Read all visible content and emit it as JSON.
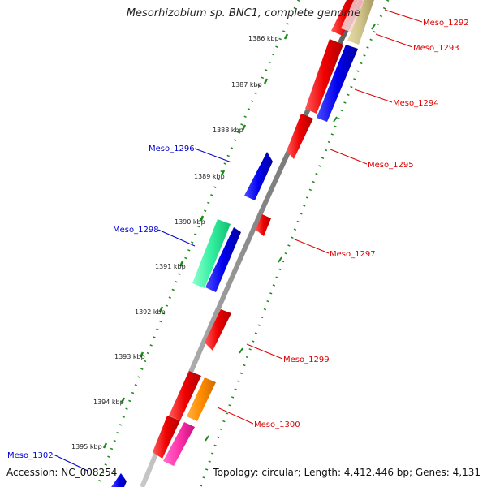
{
  "title": "Mesorhizobium sp. BNC1, complete genome",
  "footer": {
    "accession": "Accession: NC_008254",
    "topology": "Topology: circular; Length: 4,412,446 bp; Genes: 4,131"
  },
  "colors": {
    "forward_label": "#dd0000",
    "reverse_label": "#0000cc",
    "backbone": "#888888",
    "tick": "#1a8a1a"
  },
  "ticks": [
    "1386 kbp",
    "1387 kbp",
    "1388 kbp",
    "1389 kbp",
    "1390 kbp",
    "1391 kbp",
    "1392 kbp",
    "1393 kbp",
    "1394 kbp",
    "1395 kbp"
  ],
  "gene_labels": [
    {
      "name": "Meso_1292",
      "strand": "forward"
    },
    {
      "name": "Meso_1293",
      "strand": "forward"
    },
    {
      "name": "Meso_1294",
      "strand": "forward"
    },
    {
      "name": "Meso_1295",
      "strand": "forward"
    },
    {
      "name": "Meso_1296",
      "strand": "reverse"
    },
    {
      "name": "Meso_1297",
      "strand": "forward"
    },
    {
      "name": "Meso_1298",
      "strand": "reverse"
    },
    {
      "name": "Meso_1299",
      "strand": "forward"
    },
    {
      "name": "Meso_1300",
      "strand": "forward"
    },
    {
      "name": "Meso_1302",
      "strand": "reverse"
    }
  ]
}
